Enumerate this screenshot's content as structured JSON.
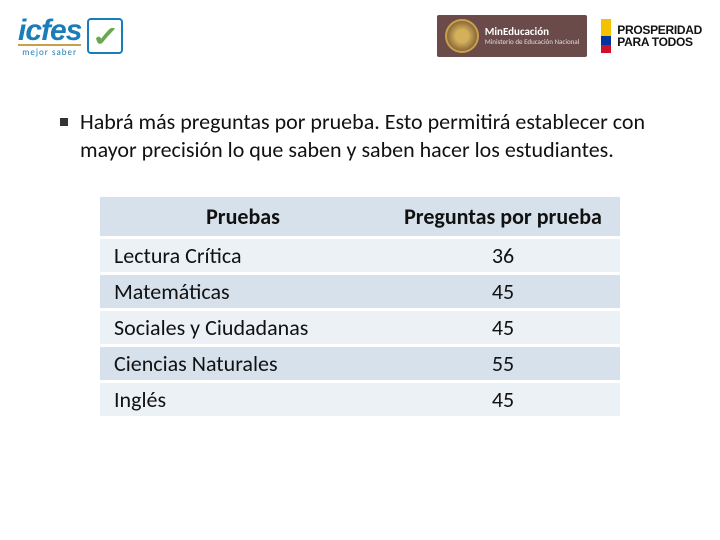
{
  "header": {
    "icfes": {
      "name": "icfes",
      "tagline": "mejor saber"
    },
    "mineducacion": {
      "title": "MinEducación",
      "subtitle": "Ministerio de Educación Nacional"
    },
    "prosperidad": {
      "line1": "PROSPERIDAD",
      "line2": "PARA TODOS"
    }
  },
  "bullet": "Habrá más preguntas por prueba. Esto permitirá establecer con mayor precisión lo que saben y saben hacer los estudiantes.",
  "table": {
    "columns": [
      "Pruebas",
      "Preguntas por prueba"
    ],
    "rows": [
      {
        "name": "Lectura Crítica",
        "value": "36"
      },
      {
        "name": "Matemáticas",
        "value": "45"
      },
      {
        "name": "Sociales y Ciudadanas",
        "value": "45"
      },
      {
        "name": "Ciencias Naturales",
        "value": "55"
      },
      {
        "name": "Inglés",
        "value": "45"
      }
    ],
    "header_bg": "#d6e1ec",
    "row_odd_bg": "#ecf1f6",
    "row_even_bg": "#d6e1ec",
    "fontsize": 22
  }
}
